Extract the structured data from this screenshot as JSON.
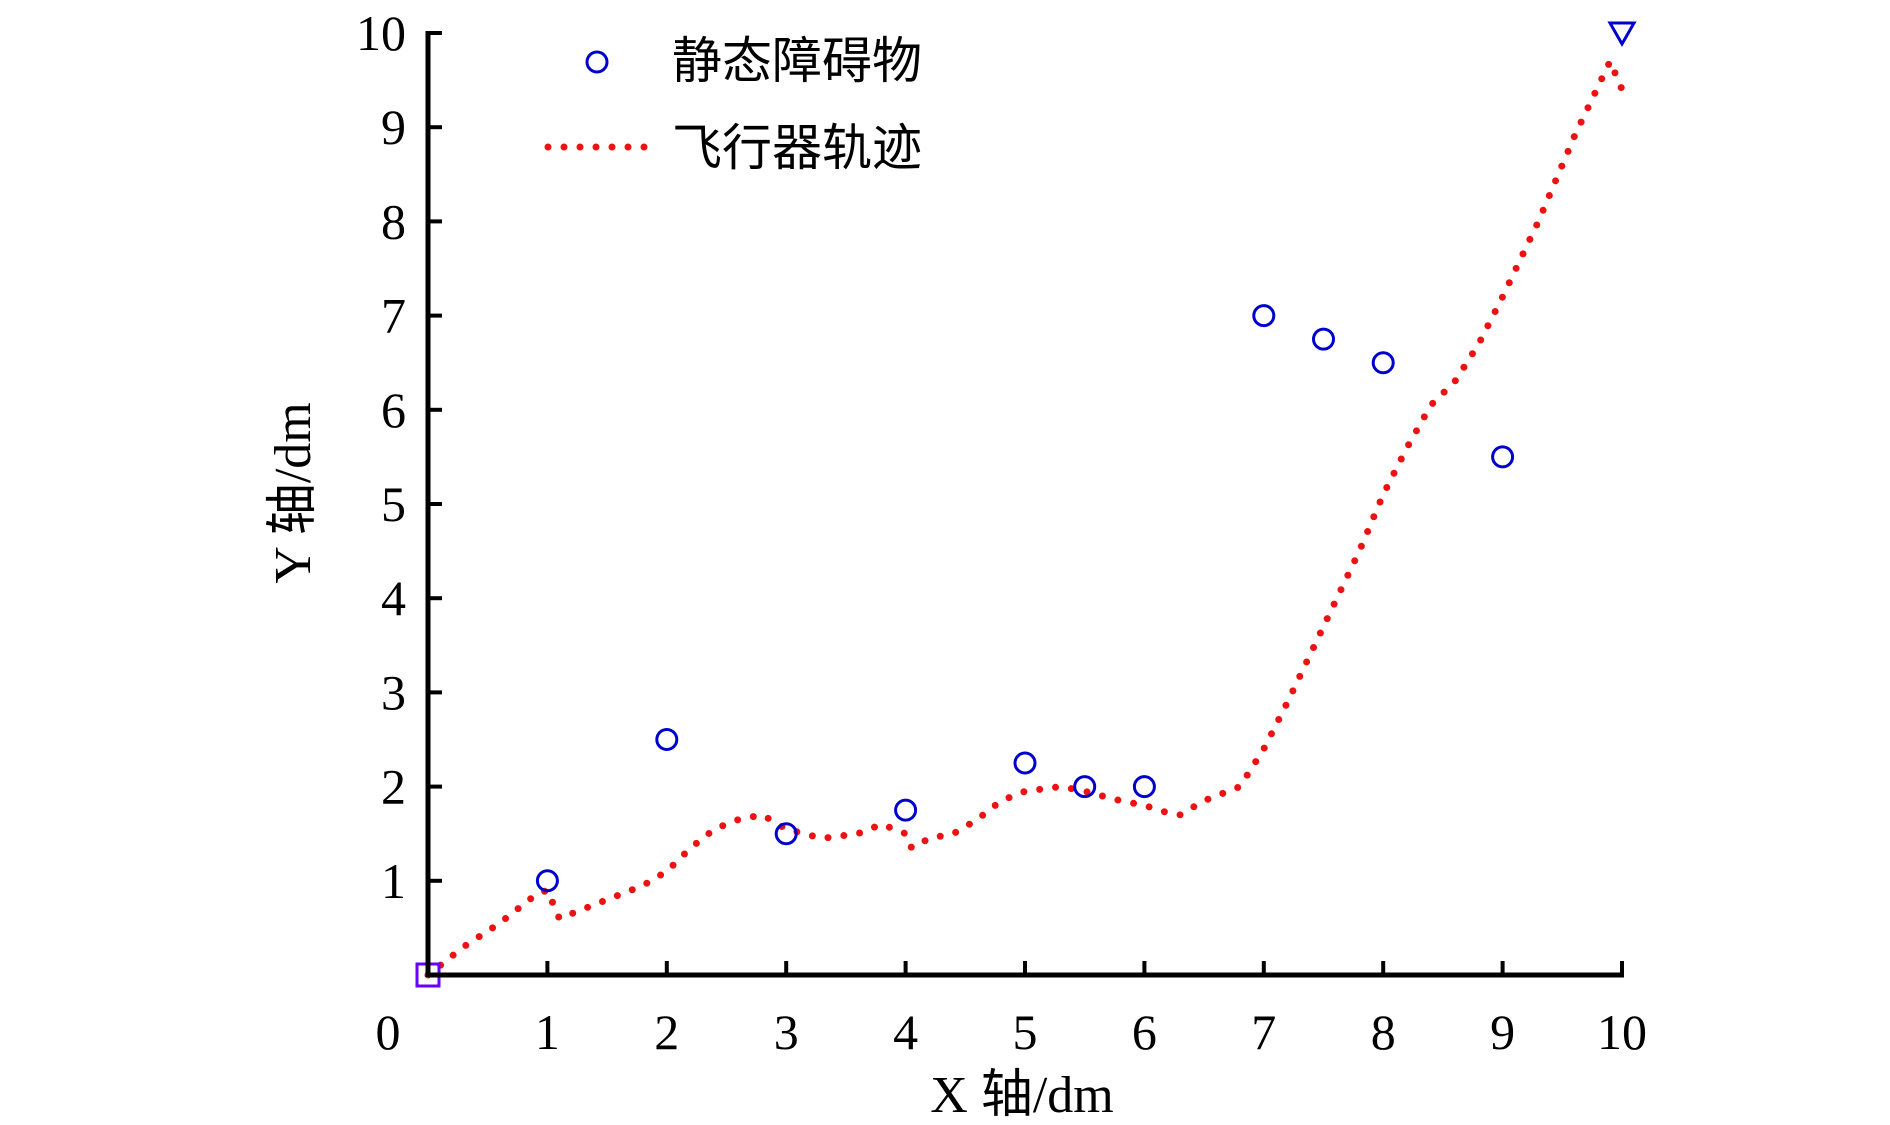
{
  "chart_data": {
    "type": "scatter",
    "xlabel": "X 轴/dm",
    "ylabel": "Y 轴/dm",
    "xlim": [
      0,
      10
    ],
    "ylim": [
      0,
      10
    ],
    "x_ticks": [
      0,
      1,
      2,
      3,
      4,
      5,
      6,
      7,
      8,
      9,
      10
    ],
    "y_ticks": [
      1,
      2,
      3,
      4,
      5,
      6,
      7,
      8,
      9,
      10
    ],
    "origin_label": "0",
    "grid": false,
    "legend_position": "top-left",
    "series": [
      {
        "name": "静态障碍物",
        "kind": "scatter",
        "marker": "open-circle",
        "color": "#0000cc",
        "points": [
          [
            1,
            1
          ],
          [
            2,
            2.5
          ],
          [
            3,
            1.5
          ],
          [
            4,
            1.75
          ],
          [
            5,
            2.25
          ],
          [
            5.5,
            2
          ],
          [
            6,
            2
          ],
          [
            7,
            7
          ],
          [
            7.5,
            6.75
          ],
          [
            8,
            6.5
          ],
          [
            9,
            5.5
          ]
        ]
      },
      {
        "name": "飞行器轨迹",
        "kind": "line",
        "style": "dotted",
        "color": "#ee1111",
        "points": [
          [
            0,
            0
          ],
          [
            0.3,
            0.3
          ],
          [
            0.6,
            0.55
          ],
          [
            0.9,
            0.85
          ],
          [
            1.0,
            0.9
          ],
          [
            1.05,
            0.75
          ],
          [
            1.1,
            0.6
          ],
          [
            1.2,
            0.65
          ],
          [
            1.5,
            0.8
          ],
          [
            1.8,
            0.95
          ],
          [
            2.0,
            1.1
          ],
          [
            2.2,
            1.35
          ],
          [
            2.4,
            1.55
          ],
          [
            2.6,
            1.65
          ],
          [
            2.8,
            1.7
          ],
          [
            3.0,
            1.55
          ],
          [
            3.3,
            1.45
          ],
          [
            3.6,
            1.5
          ],
          [
            3.8,
            1.6
          ],
          [
            4.0,
            1.5
          ],
          [
            4.05,
            1.35
          ],
          [
            4.2,
            1.45
          ],
          [
            4.4,
            1.5
          ],
          [
            4.6,
            1.65
          ],
          [
            4.8,
            1.85
          ],
          [
            5.0,
            1.95
          ],
          [
            5.3,
            2.0
          ],
          [
            5.5,
            1.95
          ],
          [
            5.8,
            1.85
          ],
          [
            6.0,
            1.8
          ],
          [
            6.2,
            1.72
          ],
          [
            6.3,
            1.7
          ],
          [
            6.5,
            1.85
          ],
          [
            6.8,
            2.0
          ],
          [
            7.0,
            2.4
          ],
          [
            7.2,
            2.9
          ],
          [
            7.5,
            3.7
          ],
          [
            7.8,
            4.5
          ],
          [
            8.0,
            5.1
          ],
          [
            8.2,
            5.6
          ],
          [
            8.4,
            6.05
          ],
          [
            8.6,
            6.3
          ],
          [
            8.8,
            6.7
          ],
          [
            9.0,
            7.2
          ],
          [
            9.3,
            8.0
          ],
          [
            9.6,
            8.9
          ],
          [
            9.9,
            9.7
          ],
          [
            10.0,
            9.4
          ]
        ]
      }
    ],
    "start_marker": {
      "x": 0,
      "y": 0,
      "marker": "open-square",
      "color": "#6600ff"
    },
    "goal_marker": {
      "x": 10,
      "y": 10,
      "marker": "open-triangle-down",
      "color": "#0000cc"
    }
  }
}
